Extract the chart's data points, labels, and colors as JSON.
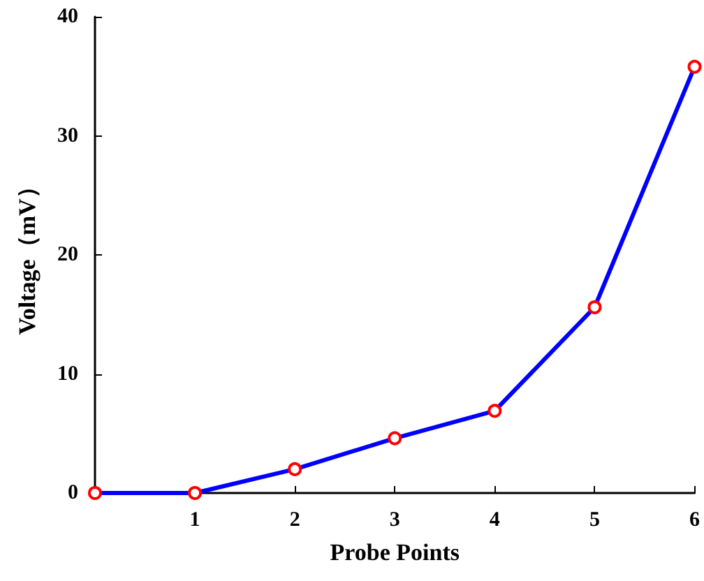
{
  "chart_data": {
    "type": "line",
    "xlabel": "Probe Points",
    "ylabel": "Voltage（mV）",
    "x": [
      0,
      1,
      2,
      3,
      4,
      5,
      6
    ],
    "series": [
      {
        "color": "#0000ff",
        "colors": [
          "#ff0000",
          "#ff0000",
          "#ff0000",
          "#ff0000",
          "#ff0000",
          "#ff0000",
          "#ff0000"
        ],
        "values": [
          0,
          0,
          2.0,
          4.6,
          6.9,
          15.6,
          35.8
        ]
      }
    ],
    "xlim": [
      0,
      6
    ],
    "xticks": [
      {
        "value": 0,
        "label": null
      },
      1,
      2,
      3,
      4,
      5,
      6
    ],
    "ylim": [
      0,
      40
    ],
    "yticks": [
      0,
      10,
      20,
      30,
      40
    ],
    "grid": false,
    "marker": "circle",
    "line_style": "solid"
  }
}
